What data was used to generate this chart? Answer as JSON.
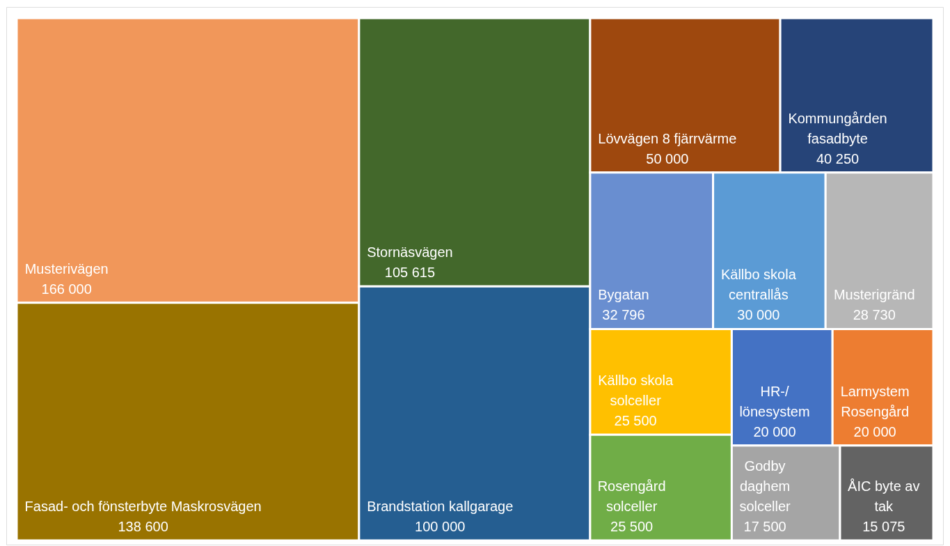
{
  "chart_data": {
    "type": "other",
    "categories": [
      "Musterivägen",
      "Fasad- och fönsterbyte Maskrosvägen",
      "Stornäsvägen",
      "Brandstation kallgarage",
      "Lövvägen 8 fjärrvärme",
      "Kommungården fasadbyte",
      "Bygatan",
      "Källbo skola centrallås",
      "Musterigränd",
      "Källbo skola solceller",
      "Rosengård solceller",
      "HR-/lönesystem",
      "Larmystem Rosengård",
      "Godby daghem solceller",
      "ÅIC byte av tak"
    ],
    "values": [
      166000,
      138600,
      105615,
      100000,
      50000,
      40250,
      32796,
      30000,
      28730,
      25500,
      25500,
      20000,
      20000,
      17500,
      15075
    ],
    "colors": [
      "#f1975a",
      "#997300",
      "#43682b",
      "#255e91",
      "#9e480e",
      "#264478",
      "#698ed0",
      "#5b9bd5",
      "#b7b7b7",
      "#ffc000",
      "#70ad47",
      "#4472c4",
      "#ed7d31",
      "#a5a5a5",
      "#636363"
    ],
    "data_labels": true
  }
}
